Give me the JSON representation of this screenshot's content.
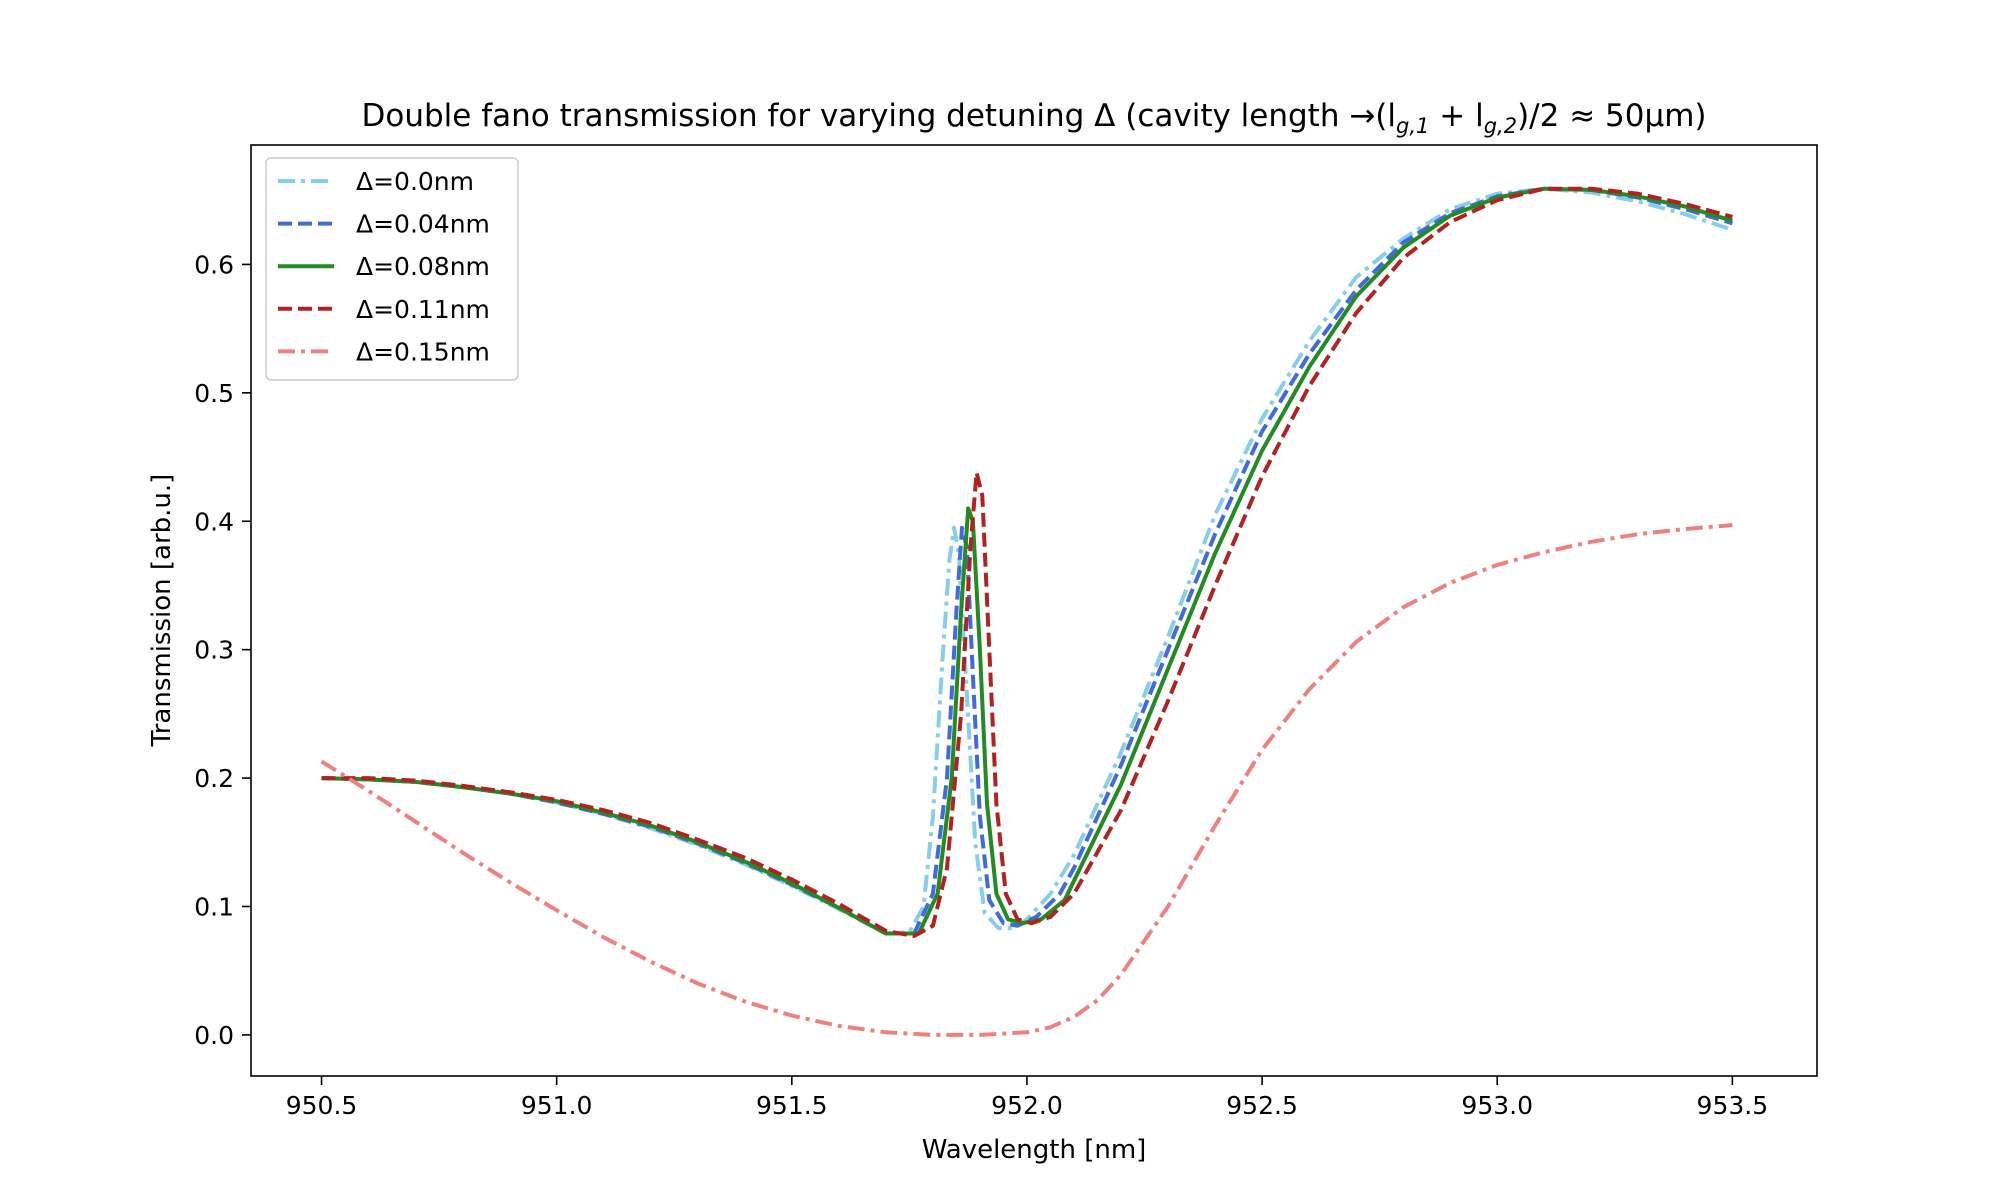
{
  "chart_data": {
    "type": "line",
    "title": "Double fano transmission for varying detuning Δ (cavity length →(l",
    "title_sub1": "g,1",
    "title_mid": " + l",
    "title_sub2": "g,2",
    "title_end": ")/2 ≈ 50μm)",
    "xlabel": "Wavelength [nm]",
    "ylabel": "Transmission [arb.u.]",
    "xlim": [
      950.35,
      953.68
    ],
    "ylim": [
      -0.032,
      0.693
    ],
    "xticks": [
      "950.5",
      "951.0",
      "951.5",
      "952.0",
      "952.5",
      "953.0",
      "953.5"
    ],
    "yticks": [
      "0.0",
      "0.1",
      "0.2",
      "0.3",
      "0.4",
      "0.5",
      "0.6"
    ],
    "grid": false,
    "legend_position": "top-left",
    "series": [
      {
        "name": "Δ=0.0nm",
        "color": "#87ceeb",
        "dash": "dashdot",
        "points": [
          [
            950.5,
            0.2
          ],
          [
            950.6,
            0.199
          ],
          [
            950.7,
            0.197
          ],
          [
            950.8,
            0.193
          ],
          [
            950.9,
            0.188
          ],
          [
            951.0,
            0.181
          ],
          [
            951.1,
            0.172
          ],
          [
            951.2,
            0.161
          ],
          [
            951.3,
            0.148
          ],
          [
            951.4,
            0.133
          ],
          [
            951.5,
            0.116
          ],
          [
            951.6,
            0.098
          ],
          [
            951.7,
            0.079
          ],
          [
            951.75,
            0.08
          ],
          [
            951.78,
            0.1
          ],
          [
            951.8,
            0.17
          ],
          [
            951.82,
            0.29
          ],
          [
            951.835,
            0.37
          ],
          [
            951.845,
            0.395
          ],
          [
            951.855,
            0.375
          ],
          [
            951.87,
            0.28
          ],
          [
            951.89,
            0.15
          ],
          [
            951.91,
            0.095
          ],
          [
            951.94,
            0.083
          ],
          [
            951.97,
            0.083
          ],
          [
            952.0,
            0.09
          ],
          [
            952.05,
            0.11
          ],
          [
            952.1,
            0.14
          ],
          [
            952.2,
            0.22
          ],
          [
            952.3,
            0.31
          ],
          [
            952.4,
            0.405
          ],
          [
            952.5,
            0.48
          ],
          [
            952.6,
            0.54
          ],
          [
            952.7,
            0.59
          ],
          [
            952.8,
            0.62
          ],
          [
            952.9,
            0.643
          ],
          [
            953.0,
            0.655
          ],
          [
            953.1,
            0.659
          ],
          [
            953.2,
            0.656
          ],
          [
            953.3,
            0.649
          ],
          [
            953.4,
            0.639
          ],
          [
            953.5,
            0.627
          ]
        ]
      },
      {
        "name": "Δ=0.04nm",
        "color": "#4169e1",
        "dash": "dashed",
        "points": [
          [
            950.5,
            0.2
          ],
          [
            950.6,
            0.199
          ],
          [
            950.7,
            0.197
          ],
          [
            950.8,
            0.193
          ],
          [
            950.9,
            0.188
          ],
          [
            951.0,
            0.181
          ],
          [
            951.1,
            0.172
          ],
          [
            951.2,
            0.162
          ],
          [
            951.3,
            0.149
          ],
          [
            951.4,
            0.134
          ],
          [
            951.5,
            0.117
          ],
          [
            951.6,
            0.099
          ],
          [
            951.7,
            0.079
          ],
          [
            951.76,
            0.079
          ],
          [
            951.8,
            0.11
          ],
          [
            951.83,
            0.2
          ],
          [
            951.85,
            0.33
          ],
          [
            951.862,
            0.395
          ],
          [
            951.872,
            0.38
          ],
          [
            951.885,
            0.28
          ],
          [
            951.9,
            0.17
          ],
          [
            951.92,
            0.105
          ],
          [
            951.95,
            0.087
          ],
          [
            951.98,
            0.085
          ],
          [
            952.02,
            0.092
          ],
          [
            952.07,
            0.11
          ],
          [
            952.1,
            0.13
          ],
          [
            952.2,
            0.21
          ],
          [
            952.3,
            0.3
          ],
          [
            952.4,
            0.39
          ],
          [
            952.5,
            0.47
          ],
          [
            952.6,
            0.53
          ],
          [
            952.7,
            0.58
          ],
          [
            952.8,
            0.617
          ],
          [
            952.9,
            0.64
          ],
          [
            953.0,
            0.653
          ],
          [
            953.1,
            0.659
          ],
          [
            953.2,
            0.658
          ],
          [
            953.3,
            0.652
          ],
          [
            953.4,
            0.643
          ],
          [
            953.5,
            0.632
          ]
        ]
      },
      {
        "name": "Δ=0.08nm",
        "color": "#228b22",
        "dash": "solid",
        "points": [
          [
            950.5,
            0.2
          ],
          [
            950.6,
            0.199
          ],
          [
            950.7,
            0.197
          ],
          [
            950.8,
            0.193
          ],
          [
            950.9,
            0.188
          ],
          [
            951.0,
            0.182
          ],
          [
            951.1,
            0.173
          ],
          [
            951.2,
            0.163
          ],
          [
            951.3,
            0.15
          ],
          [
            951.4,
            0.135
          ],
          [
            951.5,
            0.118
          ],
          [
            951.6,
            0.099
          ],
          [
            951.7,
            0.079
          ],
          [
            951.77,
            0.079
          ],
          [
            951.81,
            0.11
          ],
          [
            951.84,
            0.2
          ],
          [
            951.86,
            0.33
          ],
          [
            951.875,
            0.41
          ],
          [
            951.885,
            0.4
          ],
          [
            951.9,
            0.3
          ],
          [
            951.915,
            0.18
          ],
          [
            951.935,
            0.11
          ],
          [
            951.96,
            0.09
          ],
          [
            951.99,
            0.087
          ],
          [
            952.03,
            0.09
          ],
          [
            952.08,
            0.105
          ],
          [
            952.1,
            0.12
          ],
          [
            952.2,
            0.195
          ],
          [
            952.3,
            0.285
          ],
          [
            952.4,
            0.375
          ],
          [
            952.5,
            0.455
          ],
          [
            952.6,
            0.52
          ],
          [
            952.7,
            0.575
          ],
          [
            952.8,
            0.613
          ],
          [
            952.9,
            0.638
          ],
          [
            953.0,
            0.652
          ],
          [
            953.1,
            0.659
          ],
          [
            953.2,
            0.658
          ],
          [
            953.3,
            0.653
          ],
          [
            953.4,
            0.645
          ],
          [
            953.5,
            0.634
          ]
        ]
      },
      {
        "name": "Δ=0.11nm",
        "color": "#b22222",
        "dash": "dashed",
        "points": [
          [
            950.5,
            0.2
          ],
          [
            950.6,
            0.2
          ],
          [
            950.7,
            0.198
          ],
          [
            950.8,
            0.194
          ],
          [
            950.9,
            0.189
          ],
          [
            951.0,
            0.183
          ],
          [
            951.1,
            0.175
          ],
          [
            951.2,
            0.165
          ],
          [
            951.3,
            0.152
          ],
          [
            951.4,
            0.138
          ],
          [
            951.5,
            0.121
          ],
          [
            951.6,
            0.102
          ],
          [
            951.7,
            0.081
          ],
          [
            951.76,
            0.077
          ],
          [
            951.8,
            0.085
          ],
          [
            951.83,
            0.13
          ],
          [
            951.86,
            0.25
          ],
          [
            951.88,
            0.38
          ],
          [
            951.893,
            0.438
          ],
          [
            951.905,
            0.42
          ],
          [
            951.92,
            0.3
          ],
          [
            951.935,
            0.18
          ],
          [
            951.955,
            0.11
          ],
          [
            951.98,
            0.09
          ],
          [
            952.01,
            0.087
          ],
          [
            952.05,
            0.092
          ],
          [
            952.1,
            0.11
          ],
          [
            952.2,
            0.175
          ],
          [
            952.3,
            0.26
          ],
          [
            952.4,
            0.35
          ],
          [
            952.5,
            0.435
          ],
          [
            952.6,
            0.505
          ],
          [
            952.7,
            0.562
          ],
          [
            952.8,
            0.605
          ],
          [
            952.9,
            0.633
          ],
          [
            953.0,
            0.65
          ],
          [
            953.1,
            0.659
          ],
          [
            953.2,
            0.659
          ],
          [
            953.3,
            0.655
          ],
          [
            953.4,
            0.647
          ],
          [
            953.5,
            0.637
          ]
        ]
      },
      {
        "name": "Δ=0.15nm",
        "color": "#f08080",
        "dash": "dashdot",
        "points": [
          [
            950.5,
            0.213
          ],
          [
            950.6,
            0.19
          ],
          [
            950.7,
            0.166
          ],
          [
            950.8,
            0.142
          ],
          [
            950.9,
            0.119
          ],
          [
            951.0,
            0.097
          ],
          [
            951.1,
            0.076
          ],
          [
            951.2,
            0.057
          ],
          [
            951.3,
            0.04
          ],
          [
            951.4,
            0.026
          ],
          [
            951.5,
            0.015
          ],
          [
            951.6,
            0.007
          ],
          [
            951.7,
            0.002
          ],
          [
            951.8,
            0.0
          ],
          [
            951.9,
            0.0
          ],
          [
            952.0,
            0.002
          ],
          [
            952.05,
            0.006
          ],
          [
            952.1,
            0.014
          ],
          [
            952.15,
            0.027
          ],
          [
            952.2,
            0.047
          ],
          [
            952.3,
            0.1
          ],
          [
            952.4,
            0.163
          ],
          [
            952.5,
            0.222
          ],
          [
            952.6,
            0.269
          ],
          [
            952.7,
            0.306
          ],
          [
            952.8,
            0.333
          ],
          [
            952.9,
            0.352
          ],
          [
            953.0,
            0.366
          ],
          [
            953.1,
            0.376
          ],
          [
            953.2,
            0.384
          ],
          [
            953.3,
            0.39
          ],
          [
            953.4,
            0.394
          ],
          [
            953.5,
            0.397
          ]
        ]
      }
    ]
  }
}
